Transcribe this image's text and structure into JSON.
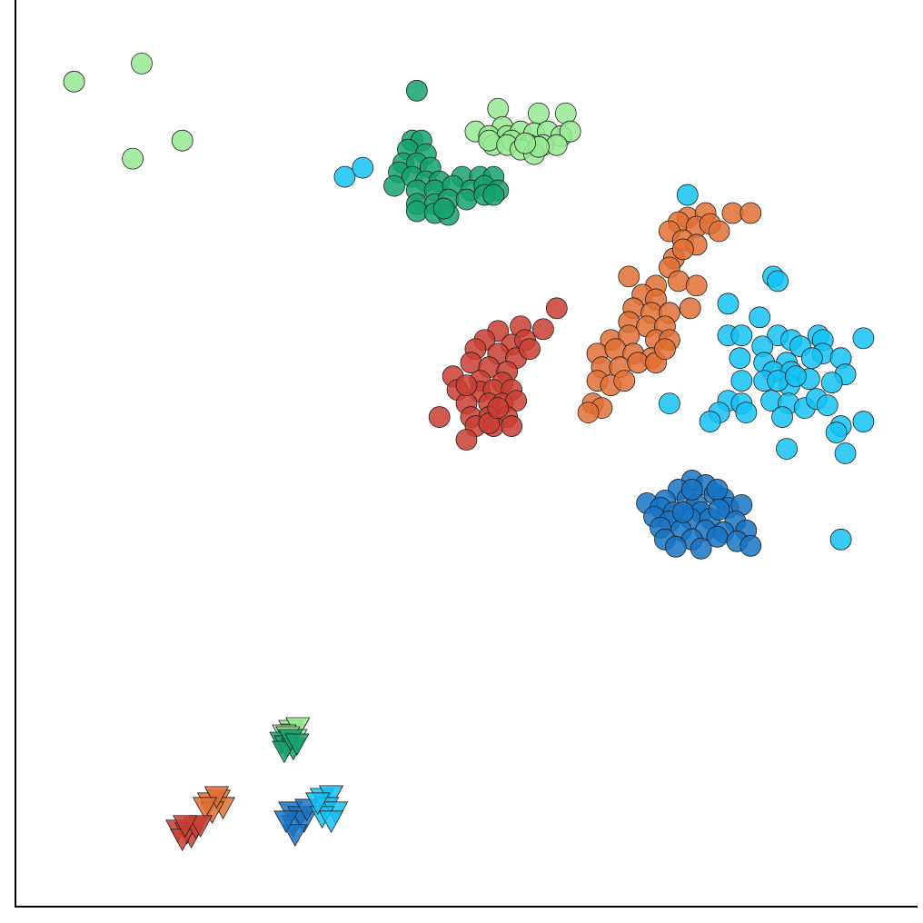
{
  "chart_data": {
    "type": "scatter",
    "title": "",
    "xlabel": "",
    "ylabel": "",
    "xlim": [
      0,
      100
    ],
    "ylim": [
      0,
      100
    ],
    "grid": false,
    "legend": "none",
    "ticks": "none",
    "series": [
      {
        "color": "#1874c4",
        "marker": "circle",
        "points": [
          [
            75.0,
            47.0
          ],
          [
            76.5,
            46.5
          ],
          [
            73.5,
            46.0
          ],
          [
            77.5,
            45.5
          ],
          [
            72.0,
            44.8
          ],
          [
            74.5,
            45.0
          ],
          [
            78.5,
            45.0
          ],
          [
            75.5,
            44.3
          ],
          [
            70.0,
            44.5
          ],
          [
            71.5,
            44.0
          ],
          [
            73.0,
            43.5
          ],
          [
            76.0,
            43.5
          ],
          [
            79.0,
            44.0
          ],
          [
            80.5,
            44.3
          ],
          [
            70.8,
            43.0
          ],
          [
            72.5,
            42.5
          ],
          [
            74.8,
            42.8
          ],
          [
            77.0,
            42.8
          ],
          [
            79.8,
            42.5
          ],
          [
            71.5,
            41.8
          ],
          [
            73.8,
            41.5
          ],
          [
            76.5,
            41.5
          ],
          [
            78.5,
            41.3
          ],
          [
            81.0,
            41.5
          ],
          [
            72.0,
            40.5
          ],
          [
            75.0,
            40.5
          ],
          [
            77.8,
            40.8
          ],
          [
            80.0,
            40.3
          ],
          [
            73.2,
            39.7
          ],
          [
            76.0,
            39.5
          ],
          [
            81.5,
            39.8
          ],
          [
            75.0,
            46.0
          ],
          [
            77.8,
            46.0
          ],
          [
            74.0,
            43.5
          ],
          [
            78.0,
            43.8
          ]
        ]
      },
      {
        "color": "#14c2f4",
        "marker": "circle",
        "points": [
          [
            74.5,
            78.5
          ],
          [
            84.0,
            69.5
          ],
          [
            84.5,
            69.0
          ],
          [
            79.0,
            66.5
          ],
          [
            82.5,
            65.0
          ],
          [
            79.0,
            63.0
          ],
          [
            80.5,
            63.0
          ],
          [
            84.5,
            63.0
          ],
          [
            86.0,
            62.5
          ],
          [
            89.0,
            63.0
          ],
          [
            89.5,
            62.5
          ],
          [
            94.0,
            62.7
          ],
          [
            82.8,
            61.8
          ],
          [
            87.0,
            61.8
          ],
          [
            89.5,
            61.0
          ],
          [
            80.3,
            60.5
          ],
          [
            83.0,
            60.0
          ],
          [
            85.5,
            60.0
          ],
          [
            88.3,
            60.5
          ],
          [
            91.5,
            60.5
          ],
          [
            84.0,
            59.0
          ],
          [
            86.0,
            59.0
          ],
          [
            92.0,
            58.7
          ],
          [
            80.5,
            58.0
          ],
          [
            83.0,
            58.0
          ],
          [
            85.8,
            57.5
          ],
          [
            88.0,
            58.2
          ],
          [
            90.5,
            57.8
          ],
          [
            72.5,
            55.5
          ],
          [
            79.0,
            55.8
          ],
          [
            80.5,
            55.5
          ],
          [
            83.8,
            55.8
          ],
          [
            85.7,
            55.5
          ],
          [
            87.5,
            55.0
          ],
          [
            88.8,
            56.0
          ],
          [
            90.0,
            55.3
          ],
          [
            78.0,
            54.5
          ],
          [
            81.0,
            54.5
          ],
          [
            85.0,
            54.0
          ],
          [
            77.0,
            53.5
          ],
          [
            91.5,
            53.0
          ],
          [
            94.0,
            53.5
          ],
          [
            91.0,
            52.3
          ],
          [
            85.5,
            50.5
          ],
          [
            92.0,
            50.0
          ],
          [
            91.5,
            40.5
          ],
          [
            36.5,
            80.5
          ],
          [
            38.5,
            81.5
          ],
          [
            84.5,
            58.0
          ],
          [
            86.5,
            58.5
          ]
        ]
      },
      {
        "color": "#e07035",
        "marker": "circle",
        "points": [
          [
            79.5,
            76.5
          ],
          [
            81.5,
            76.5
          ],
          [
            74.5,
            76.0
          ],
          [
            76.5,
            76.5
          ],
          [
            73.5,
            75.5
          ],
          [
            75.5,
            75.0
          ],
          [
            77.0,
            75.3
          ],
          [
            78.0,
            74.5
          ],
          [
            72.5,
            74.5
          ],
          [
            74.0,
            73.5
          ],
          [
            75.5,
            73.0
          ],
          [
            73.0,
            71.5
          ],
          [
            74.0,
            72.5
          ],
          [
            72.5,
            70.5
          ],
          [
            68.0,
            69.5
          ],
          [
            71.0,
            68.5
          ],
          [
            73.5,
            69.0
          ],
          [
            75.5,
            68.5
          ],
          [
            69.5,
            67.5
          ],
          [
            71.0,
            67.0
          ],
          [
            68.5,
            66.0
          ],
          [
            70.5,
            65.5
          ],
          [
            72.5,
            65.5
          ],
          [
            74.8,
            66.0
          ],
          [
            68.0,
            64.5
          ],
          [
            70.0,
            64.0
          ],
          [
            72.0,
            64.0
          ],
          [
            66.0,
            62.5
          ],
          [
            68.0,
            63.0
          ],
          [
            71.0,
            62.5
          ],
          [
            72.5,
            62.5
          ],
          [
            64.5,
            61.0
          ],
          [
            66.5,
            61.5
          ],
          [
            68.5,
            61.0
          ],
          [
            70.5,
            60.5
          ],
          [
            65.0,
            59.5
          ],
          [
            67.0,
            59.5
          ],
          [
            69.0,
            60.0
          ],
          [
            71.0,
            60.0
          ],
          [
            64.5,
            58.0
          ],
          [
            66.0,
            57.5
          ],
          [
            67.5,
            58.0
          ],
          [
            64.0,
            55.5
          ],
          [
            65.0,
            55.0
          ],
          [
            63.5,
            54.5
          ],
          [
            72.0,
            61.5
          ]
        ]
      },
      {
        "color": "#ca3e32",
        "marker": "circle",
        "points": [
          [
            60.0,
            66.0
          ],
          [
            56.0,
            64.0
          ],
          [
            58.5,
            63.7
          ],
          [
            53.5,
            63.5
          ],
          [
            52.0,
            62.5
          ],
          [
            55.0,
            62.0
          ],
          [
            56.5,
            62.5
          ],
          [
            51.0,
            61.5
          ],
          [
            53.5,
            61.0
          ],
          [
            55.5,
            60.5
          ],
          [
            57.0,
            61.5
          ],
          [
            50.5,
            60.0
          ],
          [
            52.5,
            59.5
          ],
          [
            54.5,
            59.0
          ],
          [
            48.5,
            58.5
          ],
          [
            51.5,
            58.0
          ],
          [
            54.0,
            57.8
          ],
          [
            49.0,
            57.0
          ],
          [
            51.5,
            56.8
          ],
          [
            53.0,
            57.0
          ],
          [
            55.0,
            57.0
          ],
          [
            50.0,
            55.5
          ],
          [
            52.5,
            55.5
          ],
          [
            54.0,
            55.5
          ],
          [
            55.5,
            55.8
          ],
          [
            47.0,
            54.0
          ],
          [
            50.5,
            54.0
          ],
          [
            52.5,
            54.0
          ],
          [
            54.5,
            54.0
          ],
          [
            51.0,
            53.0
          ],
          [
            53.0,
            53.0
          ],
          [
            55.0,
            53.0
          ],
          [
            50.0,
            51.5
          ],
          [
            52.5,
            53.3
          ],
          [
            53.5,
            55.0
          ],
          [
            50.0,
            57.5
          ]
        ]
      },
      {
        "color": "#15a26e",
        "marker": "circle",
        "points": [
          [
            44.5,
            90.0
          ],
          [
            44.0,
            84.5
          ],
          [
            45.0,
            84.5
          ],
          [
            43.5,
            83.5
          ],
          [
            45.5,
            83.0
          ],
          [
            43.0,
            82.0
          ],
          [
            44.5,
            82.0
          ],
          [
            46.0,
            81.5
          ],
          [
            42.5,
            81.0
          ],
          [
            44.0,
            80.5
          ],
          [
            45.5,
            80.0
          ],
          [
            47.0,
            80.0
          ],
          [
            49.5,
            80.5
          ],
          [
            51.5,
            80.5
          ],
          [
            53.0,
            80.5
          ],
          [
            42.0,
            79.5
          ],
          [
            44.5,
            79.0
          ],
          [
            46.5,
            79.0
          ],
          [
            48.5,
            79.5
          ],
          [
            50.5,
            79.0
          ],
          [
            52.0,
            79.5
          ],
          [
            53.5,
            79.0
          ],
          [
            44.5,
            77.5
          ],
          [
            46.5,
            77.5
          ],
          [
            48.0,
            78.0
          ],
          [
            50.0,
            78.0
          ],
          [
            52.0,
            78.5
          ],
          [
            53.0,
            78.5
          ],
          [
            44.5,
            76.7
          ],
          [
            46.5,
            76.5
          ],
          [
            48.0,
            76.3
          ],
          [
            47.5,
            77.0
          ]
        ]
      },
      {
        "color": "#97ea93",
        "marker": "circle",
        "points": [
          [
            6.5,
            91.0
          ],
          [
            14.0,
            93.0
          ],
          [
            13.0,
            82.5
          ],
          [
            18.5,
            84.5
          ],
          [
            53.5,
            88.0
          ],
          [
            58.0,
            87.5
          ],
          [
            61.0,
            87.5
          ],
          [
            54.0,
            86.0
          ],
          [
            51.0,
            85.5
          ],
          [
            52.5,
            85.0
          ],
          [
            54.5,
            85.0
          ],
          [
            56.0,
            85.5
          ],
          [
            57.5,
            85.3
          ],
          [
            59.0,
            85.5
          ],
          [
            60.5,
            85.0
          ],
          [
            61.5,
            85.5
          ],
          [
            53.0,
            84.0
          ],
          [
            55.0,
            84.5
          ],
          [
            57.0,
            84.0
          ],
          [
            58.5,
            84.0
          ],
          [
            60.0,
            84.0
          ],
          [
            52.5,
            84.5
          ],
          [
            54.5,
            84.0
          ],
          [
            56.0,
            83.5
          ],
          [
            57.5,
            83.0
          ],
          [
            58.0,
            83.8
          ],
          [
            56.5,
            84.2
          ]
        ]
      },
      {
        "color": "#97ea93",
        "marker": "triangle",
        "points": [
          [
            30.5,
            19.5
          ],
          [
            30.8,
            19.1
          ],
          [
            31.3,
            19.8
          ],
          [
            29.8,
            19.0
          ],
          [
            31.0,
            18.5
          ],
          [
            30.2,
            18.8
          ]
        ]
      },
      {
        "color": "#15a26e",
        "marker": "triangle",
        "points": [
          [
            29.5,
            18.2
          ],
          [
            30.0,
            17.8
          ],
          [
            30.8,
            17.5
          ],
          [
            29.8,
            17.2
          ],
          [
            30.5,
            18.5
          ],
          [
            31.2,
            18.0
          ]
        ]
      },
      {
        "color": "#e07035",
        "marker": "triangle",
        "points": [
          [
            21.5,
            11.5
          ],
          [
            22.5,
            11.8
          ],
          [
            23.0,
            11.0
          ],
          [
            21.8,
            10.5
          ],
          [
            22.3,
            12.2
          ],
          [
            21.0,
            11.0
          ]
        ]
      },
      {
        "color": "#ca3e32",
        "marker": "triangle",
        "points": [
          [
            18.0,
            8.5
          ],
          [
            19.0,
            8.2
          ],
          [
            19.5,
            7.8
          ],
          [
            18.5,
            7.5
          ],
          [
            20.0,
            8.8
          ],
          [
            20.5,
            9.0
          ],
          [
            18.8,
            9.0
          ]
        ]
      },
      {
        "color": "#1874c4",
        "marker": "triangle",
        "points": [
          [
            30.5,
            10.5
          ],
          [
            31.5,
            10.0
          ],
          [
            30.8,
            9.0
          ],
          [
            32.0,
            9.5
          ],
          [
            31.0,
            8.0
          ],
          [
            30.0,
            9.5
          ],
          [
            32.3,
            10.8
          ]
        ]
      },
      {
        "color": "#14c2f4",
        "marker": "triangle",
        "points": [
          [
            34.0,
            12.0
          ],
          [
            35.0,
            12.3
          ],
          [
            34.5,
            11.0
          ],
          [
            35.5,
            10.5
          ],
          [
            34.0,
            10.0
          ],
          [
            35.0,
            9.5
          ],
          [
            33.5,
            11.5
          ]
        ]
      }
    ]
  }
}
